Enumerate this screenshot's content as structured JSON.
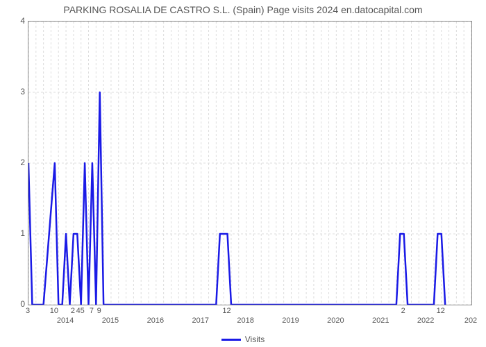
{
  "chart": {
    "type": "line",
    "title": "PARKING ROSALIA DE CASTRO S.L. (Spain) Page visits 2024 en.datocapital.com",
    "title_fontsize": 14,
    "title_color": "#555555",
    "background_color": "#ffffff",
    "plot_border_color": "#888888",
    "grid_color": "#dddddd",
    "grid_dash": "3,3",
    "line_color": "#1a1ae6",
    "line_width": 2.5,
    "legend_label": "Visits",
    "ylim": [
      0,
      4
    ],
    "ytick_positions": [
      0,
      1,
      2,
      3,
      4
    ],
    "ytick_labels": [
      "0",
      "1",
      "2",
      "3",
      "4"
    ],
    "x_range": [
      0,
      118
    ],
    "xtick_positions": [
      0,
      7,
      12,
      14,
      15,
      17,
      19,
      53,
      100,
      110
    ],
    "xtick_labels": [
      "3",
      "10",
      "2",
      "45",
      "",
      "7",
      "9",
      "12",
      "2",
      "12"
    ],
    "x_year_positions": [
      10,
      22,
      34,
      46,
      58,
      70,
      82,
      94,
      106,
      118
    ],
    "x_year_labels": [
      "2014",
      "2015",
      "2016",
      "2017",
      "2018",
      "2019",
      "2020",
      "2021",
      "2022",
      "202"
    ],
    "series": {
      "x": [
        0,
        1,
        2,
        3,
        4,
        7,
        8,
        9,
        10,
        11,
        12,
        13,
        14,
        15,
        16,
        17,
        18,
        19,
        20,
        21,
        50,
        51,
        52,
        53,
        54,
        55,
        98,
        99,
        100,
        101,
        108,
        109,
        110,
        111
      ],
      "y": [
        2,
        0,
        0,
        0,
        0,
        2,
        0,
        0,
        1,
        0,
        1,
        1,
        0,
        2,
        0,
        2,
        0,
        3,
        0,
        0,
        0,
        1,
        1,
        1,
        0,
        0,
        0,
        1,
        1,
        0,
        0,
        1,
        1,
        0
      ]
    }
  }
}
